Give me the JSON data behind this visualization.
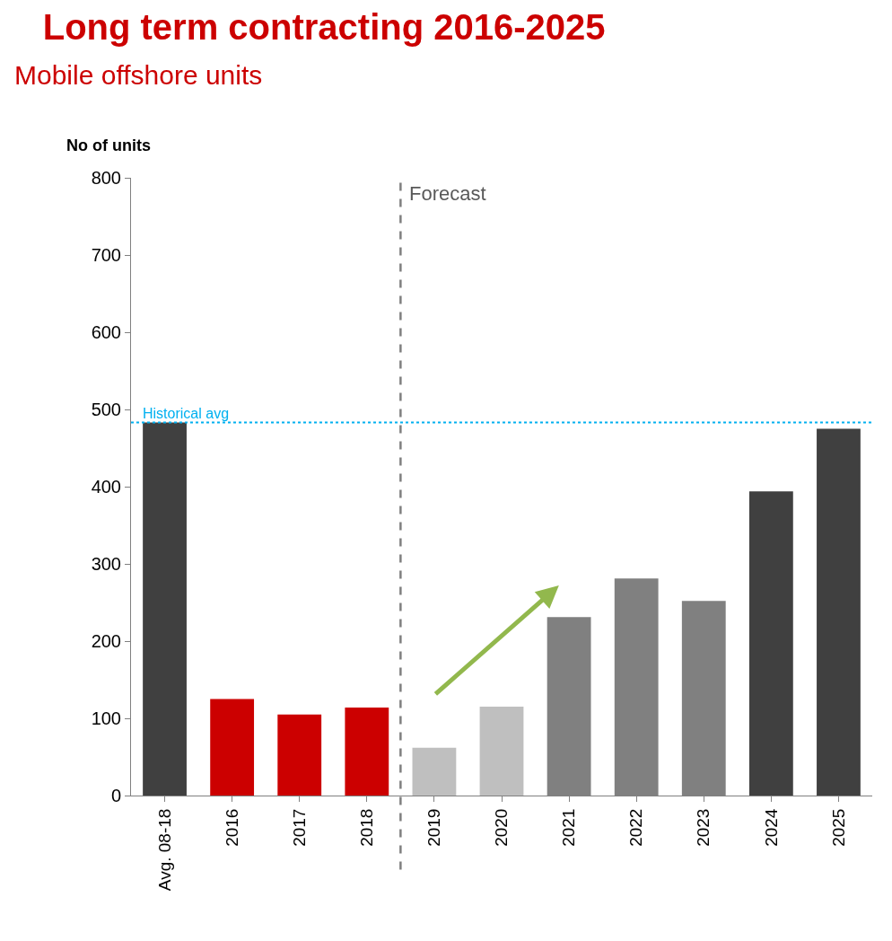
{
  "chart_data": {
    "type": "bar",
    "title": "Long term contracting 2016-2025",
    "subtitle": "Mobile offshore units",
    "ylabel": "No of units",
    "categories": [
      "Avg. 08-18",
      "2016",
      "2017",
      "2018",
      "2019",
      "2020",
      "2021",
      "2022",
      "2023",
      "2024",
      "2025"
    ],
    "values": [
      483,
      125,
      105,
      114,
      62,
      115,
      231,
      281,
      252,
      394,
      475
    ],
    "colors": [
      "#404040",
      "#cc0000",
      "#cc0000",
      "#cc0000",
      "#bfbfbf",
      "#bfbfbf",
      "#808080",
      "#808080",
      "#808080",
      "#404040",
      "#404040"
    ],
    "ylim": [
      0,
      800
    ],
    "yticks": [
      0,
      100,
      200,
      300,
      400,
      500,
      600,
      700,
      800
    ],
    "annotations": [
      "Forecast"
    ],
    "ref_lines": [
      {
        "axis": "y",
        "value": 483,
        "label": "Historical avg",
        "color": "#00b0f0",
        "line_style": "dotted"
      }
    ]
  }
}
